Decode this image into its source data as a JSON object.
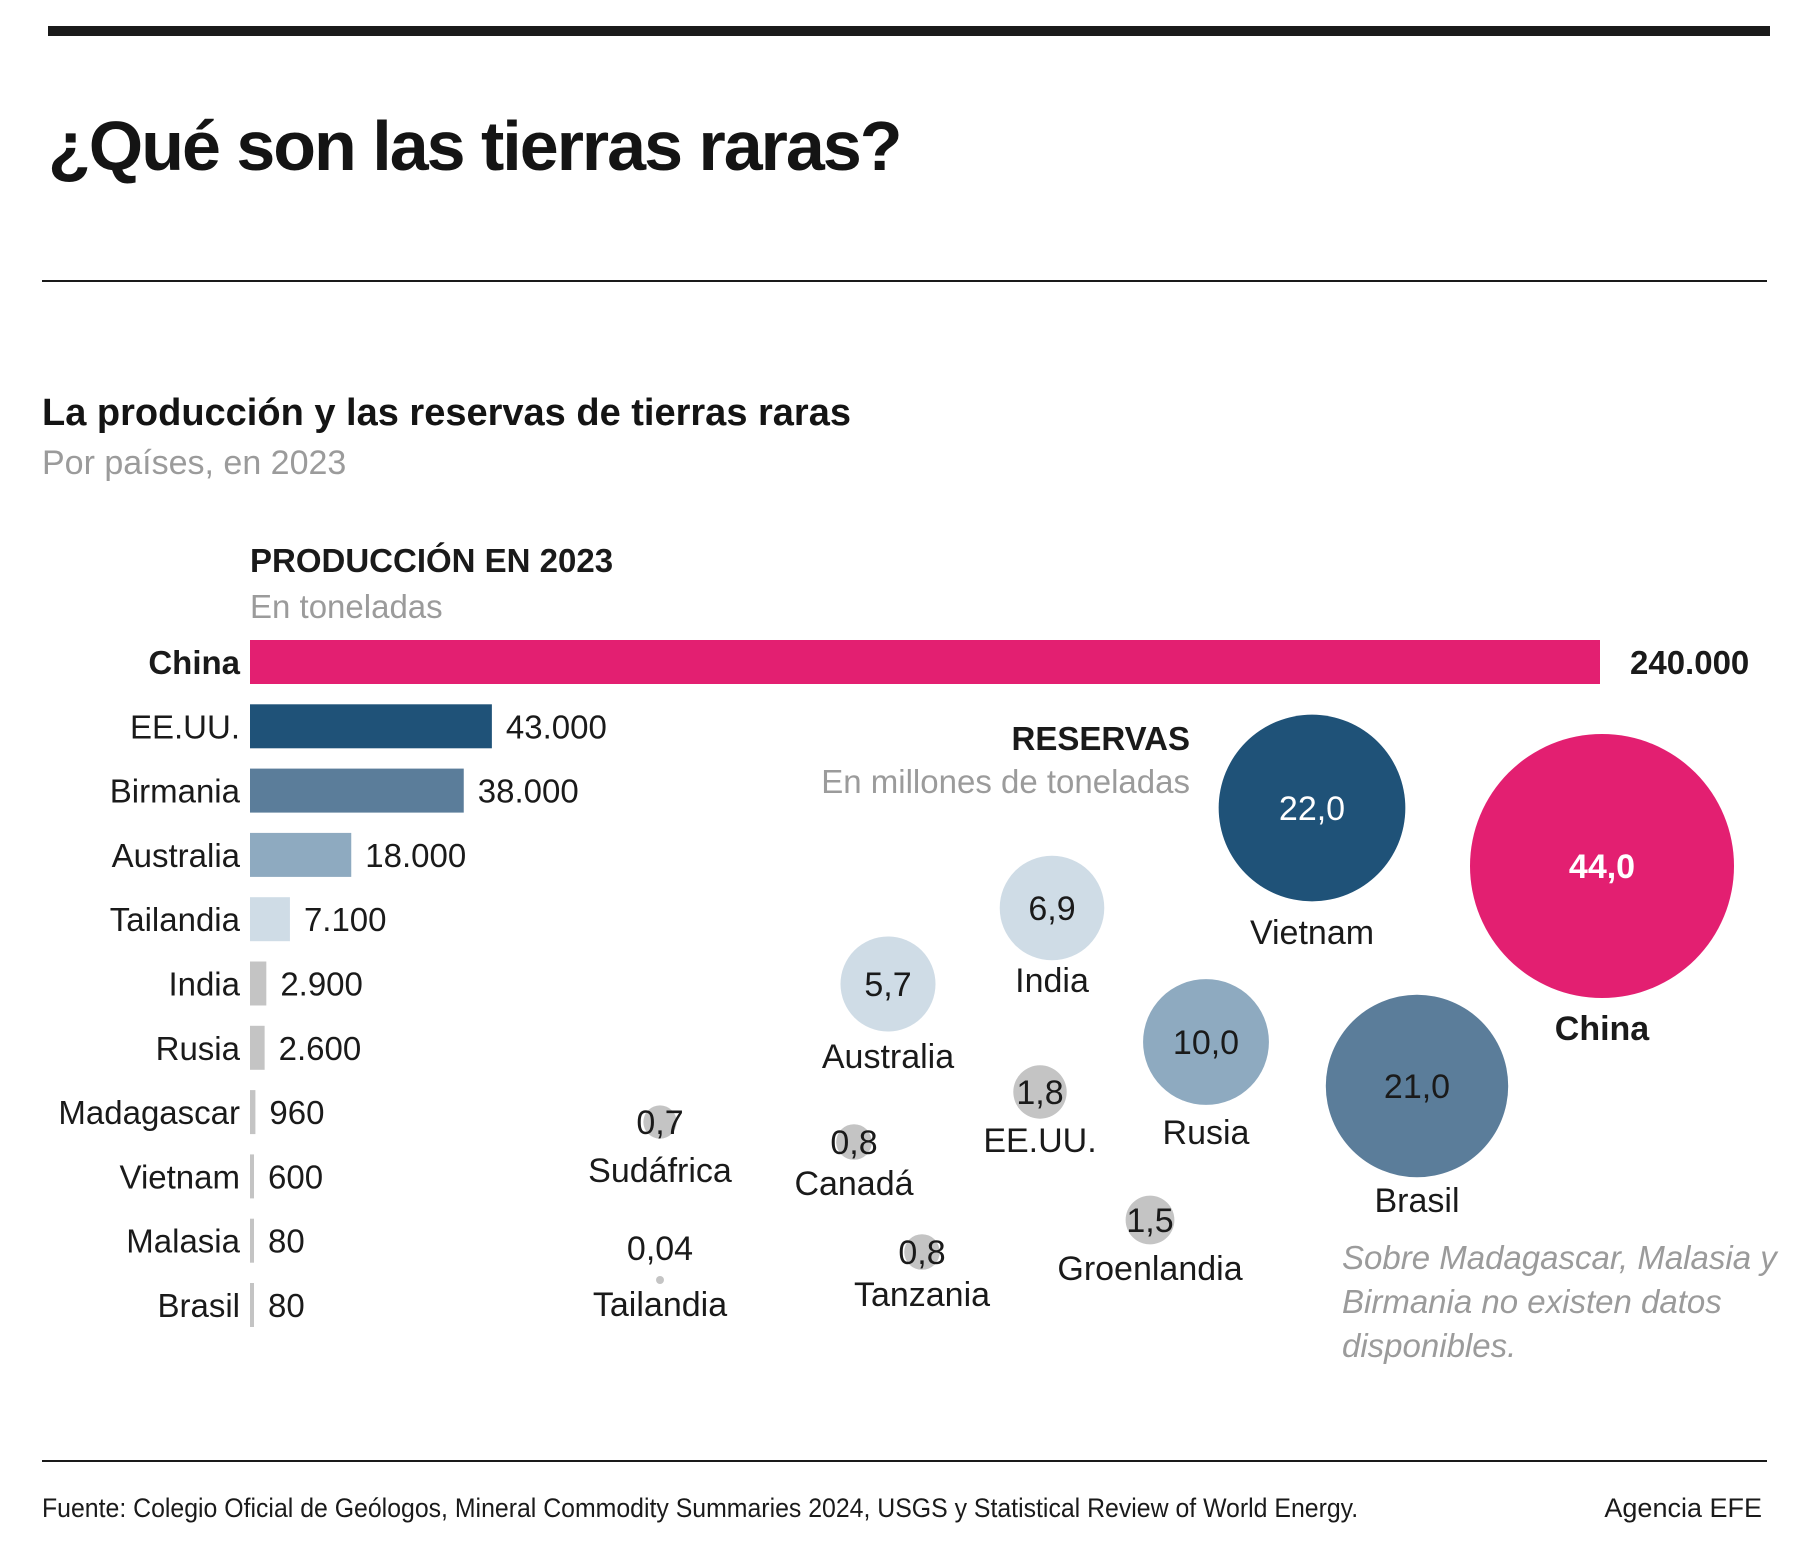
{
  "header": {
    "title": "¿Qué son las tierras raras?"
  },
  "chart_data": {
    "title": "La producción y las reservas de tierras raras",
    "subtitle": "Por países, en 2023",
    "production": {
      "type": "bar",
      "title": "PRODUCCIÓN EN 2023",
      "unit": "En toneladas",
      "categories": [
        "China",
        "EE.UU.",
        "Birmania",
        "Australia",
        "Tailandia",
        "India",
        "Rusia",
        "Madagascar",
        "Vietnam",
        "Malasia",
        "Brasil"
      ],
      "values": [
        240000,
        43000,
        38000,
        18000,
        7100,
        2900,
        2600,
        960,
        600,
        80,
        80
      ],
      "labels": [
        "240.000",
        "43.000",
        "38.000",
        "18.000",
        "7.100",
        "2.900",
        "2.600",
        "960",
        "600",
        "80",
        "80"
      ],
      "colors": [
        "#e31f71",
        "#1f5278",
        "#5b7d9a",
        "#8eaac0",
        "#cfdce6",
        "#c4c4c4",
        "#c4c4c4",
        "#c4c4c4",
        "#c4c4c4",
        "#c4c4c4",
        "#c4c4c4"
      ]
    },
    "reserves": {
      "type": "bubble",
      "title": "RESERVAS",
      "unit": "En millones de toneladas",
      "items": [
        {
          "country": "China",
          "value": 44.0,
          "label": "44,0",
          "color": "#e31f71"
        },
        {
          "country": "Vietnam",
          "value": 22.0,
          "label": "22,0",
          "color": "#1f5278"
        },
        {
          "country": "Brasil",
          "value": 21.0,
          "label": "21,0",
          "color": "#5b7d9a"
        },
        {
          "country": "Rusia",
          "value": 10.0,
          "label": "10,0",
          "color": "#8eaac0"
        },
        {
          "country": "India",
          "value": 6.9,
          "label": "6,9",
          "color": "#cfdce6"
        },
        {
          "country": "Australia",
          "value": 5.7,
          "label": "5,7",
          "color": "#cfdce6"
        },
        {
          "country": "EE.UU.",
          "value": 1.8,
          "label": "1,8",
          "color": "#c4c4c4"
        },
        {
          "country": "Groenlandia",
          "value": 1.5,
          "label": "1,5",
          "color": "#c4c4c4"
        },
        {
          "country": "Canadá",
          "value": 0.8,
          "label": "0,8",
          "color": "#c4c4c4"
        },
        {
          "country": "Tanzania",
          "value": 0.8,
          "label": "0,8",
          "color": "#c4c4c4"
        },
        {
          "country": "Sudáfrica",
          "value": 0.7,
          "label": "0,7",
          "color": "#c4c4c4"
        },
        {
          "country": "Tailandia",
          "value": 0.04,
          "label": "0,04",
          "color": "#c4c4c4"
        }
      ]
    },
    "note": "Sobre Madagascar, Malasia y Birmania no existen datos disponibles."
  },
  "footer": {
    "source": "Fuente: Colegio Oficial de Geólogos, Mineral Commodity Summaries 2024, USGS y Statistical Review of World Energy.",
    "credit": "Agencia EFE"
  }
}
